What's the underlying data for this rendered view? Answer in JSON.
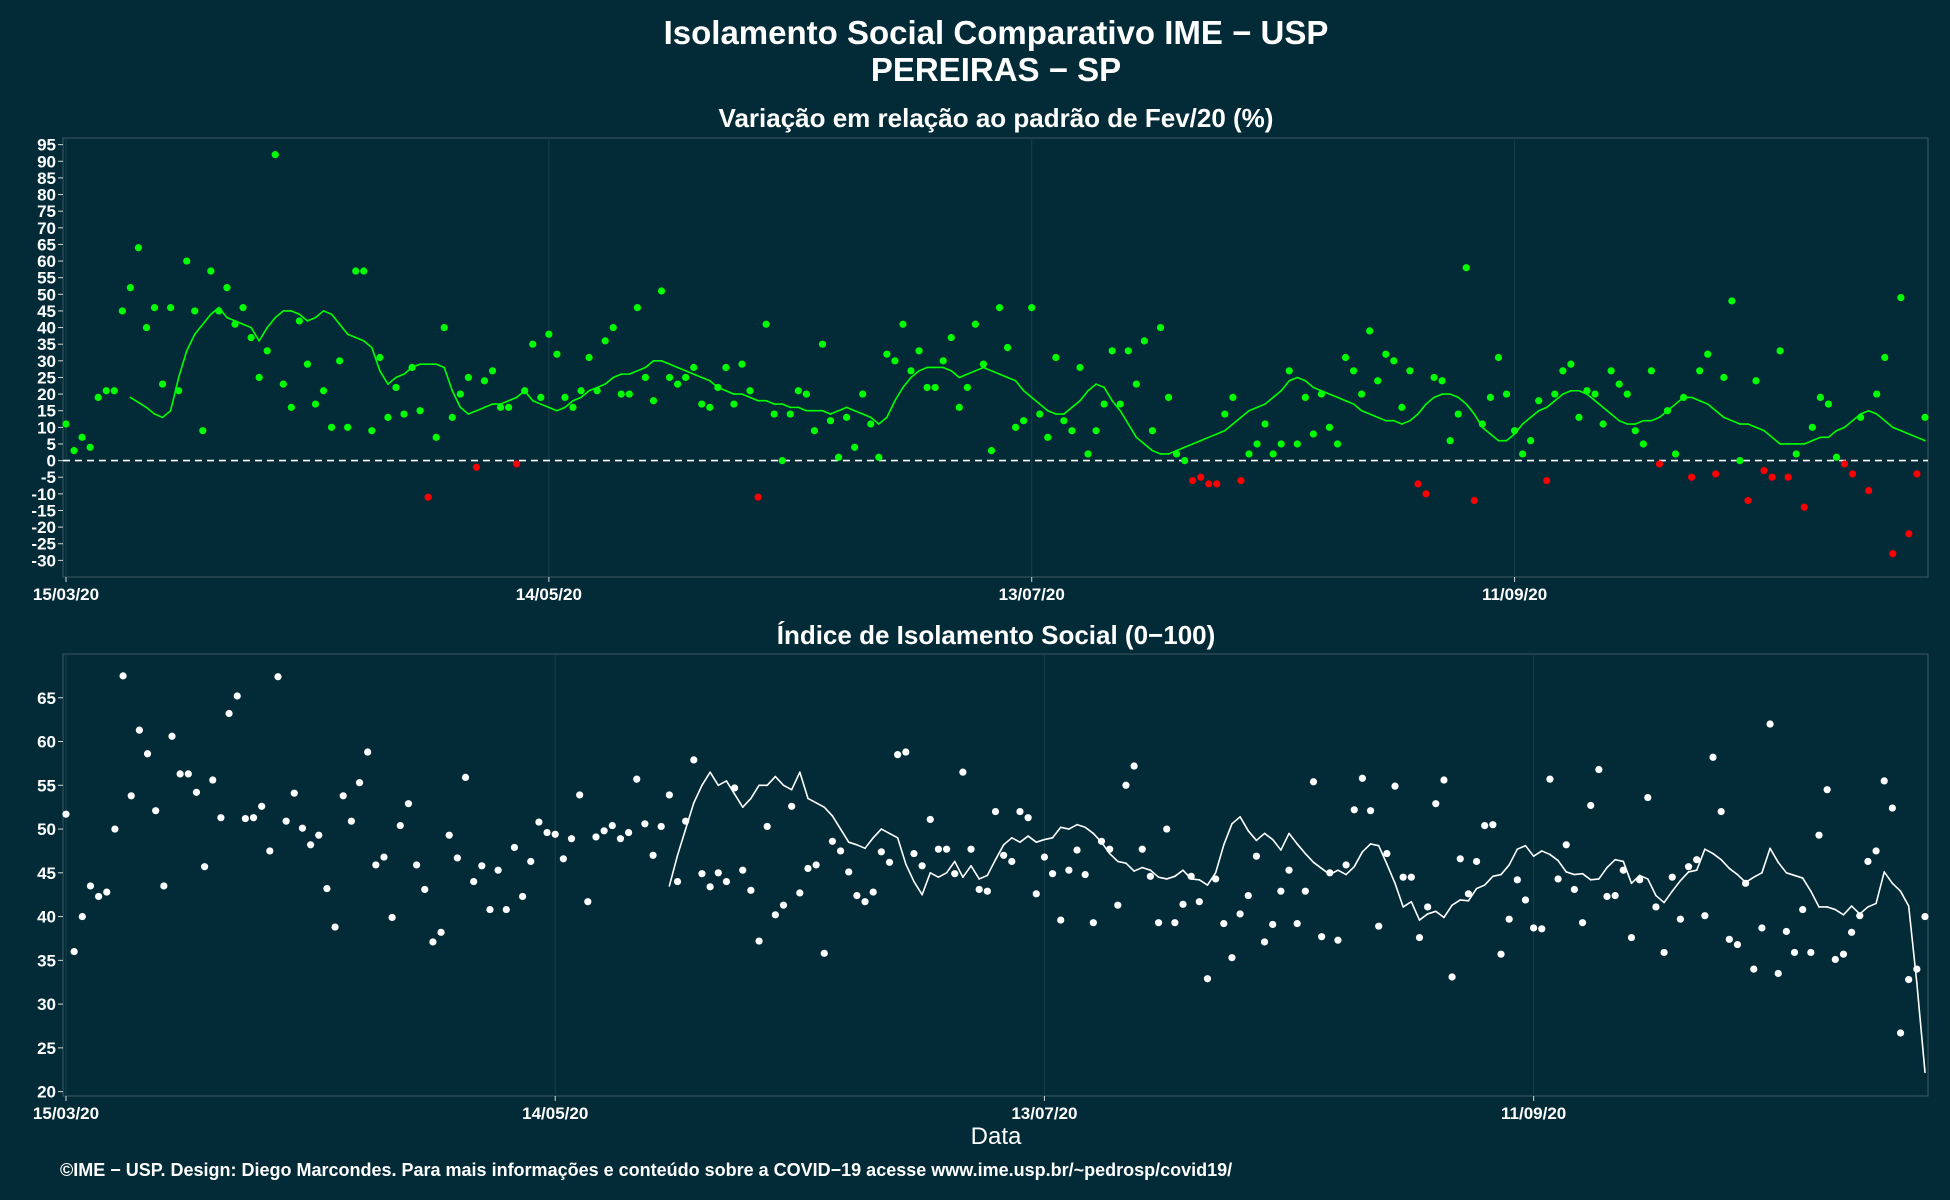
{
  "title_line1": "Isolamento Social Comparativo IME − USP",
  "title_line2": "PEREIRAS − SP",
  "xlabel": "Data",
  "credit": "©IME − USP. Design: Diego Marcondes. Para mais informações e conteúdo sobre a COVID−19 acesse www.ime.usp.br/~pedrosp/covid19/",
  "colors": {
    "background": "#022b37",
    "positive": "#00ff00",
    "negative": "#ff0000",
    "index": "#ffffff"
  },
  "chart_data": [
    {
      "type": "scatter",
      "title": "Variação em relação ao padrão de Fev/20 (%)",
      "x_start": "15/03/20",
      "x_step_days": 1,
      "xtick_labels": [
        "15/03/20",
        "14/05/20",
        "13/07/20",
        "11/09/20"
      ],
      "xtick_days": [
        0,
        60,
        120,
        180
      ],
      "ylim": [
        -35,
        97
      ],
      "yticks": [
        -30,
        -25,
        -20,
        -15,
        -10,
        -5,
        0,
        5,
        10,
        15,
        20,
        25,
        30,
        35,
        40,
        45,
        50,
        55,
        60,
        65,
        70,
        75,
        80,
        85,
        90,
        95
      ],
      "reference_line": 0,
      "values": [
        11,
        3,
        7,
        4,
        19,
        21,
        21,
        45,
        52,
        64,
        40,
        46,
        23,
        46,
        21,
        60,
        45,
        9,
        57,
        45,
        52,
        41,
        46,
        37,
        25,
        33,
        92,
        23,
        16,
        42,
        29,
        17,
        21,
        10,
        30,
        10,
        57,
        57,
        9,
        31,
        13,
        22,
        14,
        28,
        15,
        -11,
        7,
        40,
        13,
        20,
        25,
        -2,
        24,
        27,
        16,
        16,
        -1,
        21,
        35,
        19,
        38,
        32,
        19,
        16,
        21,
        31,
        21,
        36,
        40,
        20,
        20,
        46,
        25,
        18,
        51,
        25,
        23,
        25,
        28,
        17,
        16,
        22,
        28,
        17,
        29,
        21,
        -11,
        41,
        14,
        0,
        14,
        21,
        20,
        9,
        35,
        12,
        1,
        13,
        4,
        20,
        11,
        1,
        32,
        30,
        41,
        27,
        33,
        22,
        22,
        30,
        37,
        16,
        22,
        41,
        29,
        3,
        46,
        34,
        10,
        12,
        46,
        14,
        7,
        31,
        12,
        9,
        28,
        2,
        9,
        17,
        33,
        17,
        33,
        23,
        36,
        9,
        40,
        19,
        2,
        0,
        -6,
        -5,
        -7,
        -7,
        14,
        19,
        -6,
        2,
        5,
        11,
        2,
        5,
        27,
        5,
        19,
        8,
        20,
        10,
        5,
        31,
        27,
        20,
        39,
        24,
        32,
        30,
        16,
        27,
        -7,
        -10,
        25,
        24,
        6,
        14,
        58,
        -12,
        11,
        19,
        31,
        20,
        9,
        2,
        6,
        18,
        -6,
        20,
        27,
        29,
        13,
        21,
        20,
        11,
        27,
        23,
        20,
        9,
        5,
        27,
        -1,
        15,
        2,
        19,
        -5,
        27,
        32,
        -4,
        25,
        48,
        0,
        -12,
        24,
        -3,
        -5,
        33,
        -5,
        2,
        -14,
        10,
        19,
        17,
        1,
        -1,
        -4,
        13,
        -9,
        20,
        31,
        -28,
        49,
        -22,
        -4,
        13
      ],
      "moving_average": [
        19,
        17.5,
        16,
        14,
        13,
        15,
        25,
        33,
        38,
        41,
        44,
        46,
        43,
        42,
        41,
        40,
        36,
        40,
        43,
        45,
        45,
        44,
        42,
        43,
        45,
        44,
        41,
        38,
        37,
        36,
        34,
        27,
        23,
        25,
        26,
        28,
        29,
        29,
        29,
        28,
        21,
        16,
        14,
        15,
        16,
        17,
        17,
        18,
        19,
        21,
        18,
        17,
        16,
        15,
        16,
        18,
        19,
        21,
        22,
        23,
        25,
        26,
        26,
        27,
        28,
        30,
        30,
        29,
        28,
        27,
        26,
        25,
        24,
        22,
        21,
        20,
        20,
        19,
        18,
        18,
        17,
        17,
        16,
        16,
        15,
        15,
        15,
        14,
        15,
        16,
        15,
        14,
        13,
        11,
        13,
        18,
        22,
        25,
        27,
        28,
        28,
        28,
        27,
        25,
        26,
        27,
        28,
        27,
        26,
        25,
        24,
        21,
        19,
        17,
        15,
        14,
        14,
        16,
        18,
        21,
        23,
        22,
        18,
        15,
        11,
        7,
        5,
        3,
        2,
        2,
        3,
        4,
        5,
        6,
        7,
        8,
        9,
        11,
        13,
        15,
        16,
        17,
        19,
        21,
        24,
        25,
        24,
        22,
        21,
        20,
        19,
        18,
        17,
        15,
        14,
        13,
        12,
        12,
        11,
        12,
        14,
        17,
        19,
        20,
        20,
        19,
        17,
        14,
        10,
        8,
        6,
        6,
        8,
        11,
        13,
        15,
        16,
        18,
        20,
        21,
        21,
        20,
        18,
        16,
        14,
        12,
        11,
        11,
        12,
        12,
        13,
        15,
        17,
        19,
        19,
        18,
        17,
        15,
        13,
        12,
        11,
        11,
        10,
        9,
        7,
        5,
        5,
        5,
        5,
        6,
        7,
        7,
        9,
        10,
        12,
        14,
        15,
        14,
        12,
        10,
        9,
        8,
        7,
        6
      ]
    },
    {
      "type": "scatter",
      "title": "Índice de Isolamento Social (0−100)",
      "x_start": "15/03/20",
      "x_step_days": 1,
      "xtick_labels": [
        "15/03/20",
        "14/05/20",
        "13/07/20",
        "11/09/20"
      ],
      "xtick_days": [
        0,
        60,
        120,
        180
      ],
      "ylim": [
        19.5,
        70
      ],
      "yticks": [
        20,
        25,
        30,
        35,
        40,
        45,
        50,
        55,
        60,
        65
      ],
      "values": [
        51.7,
        36,
        40,
        43.5,
        42.3,
        42.8,
        50,
        67.5,
        53.8,
        61.3,
        58.6,
        52.1,
        43.5,
        60.6,
        56.3,
        56.3,
        54.2,
        45.7,
        55.6,
        51.3,
        63.2,
        65.2,
        51.2,
        51.3,
        52.6,
        47.5,
        67.4,
        50.9,
        54.1,
        50.1,
        48.2,
        49.3,
        43.2,
        38.8,
        53.8,
        50.9,
        55.3,
        58.8,
        45.9,
        46.8,
        39.9,
        50.4,
        52.9,
        45.9,
        43.1,
        37.1,
        38.2,
        49.3,
        46.7,
        55.9,
        44,
        45.8,
        40.8,
        45.3,
        40.8,
        47.9,
        42.3,
        46.3,
        50.8,
        49.6,
        49.4,
        46.6,
        48.9,
        53.9,
        41.7,
        49.1,
        49.8,
        50.4,
        48.9,
        49.6,
        55.7,
        50.6,
        47,
        50.3,
        53.9,
        44,
        50.9,
        57.9,
        44.9,
        43.4,
        45,
        44,
        54.7,
        45.3,
        43,
        37.2,
        50.3,
        40.2,
        41.3,
        52.6,
        42.7,
        45.5,
        45.9,
        35.8,
        48.6,
        47.5,
        45.1,
        42.4,
        41.7,
        42.8,
        47.4,
        46.2,
        58.5,
        58.8,
        47.2,
        45.8,
        51.1,
        47.7,
        47.7,
        44.9,
        56.5,
        47.7,
        43.1,
        42.9,
        52,
        47,
        46.3,
        52,
        51.3,
        42.6,
        46.8,
        44.9,
        39.6,
        45.3,
        47.6,
        44.8,
        39.3,
        48.6,
        47.7,
        41.3,
        55,
        57.2,
        47.7,
        44.6,
        39.3,
        50,
        39.3,
        41.4,
        44.6,
        41.7,
        32.9,
        44.3,
        39.2,
        35.3,
        40.3,
        42.4,
        46.9,
        37.1,
        39.1,
        42.9,
        45.3,
        39.2,
        42.9,
        55.4,
        37.7,
        45,
        37.3,
        45.9,
        52.2,
        55.8,
        52.1,
        38.9,
        47.2,
        54.9,
        44.5,
        44.5,
        37.6,
        41.1,
        52.9,
        55.6,
        33.1,
        46.6,
        42.6,
        46.3,
        50.4,
        50.5,
        35.7,
        39.7,
        44.2,
        41.9,
        38.7,
        38.6,
        55.7,
        44.3,
        48.2,
        43.1,
        39.3,
        52.7,
        56.8,
        42.3,
        42.4,
        45.3,
        37.6,
        44.2,
        53.6,
        41.1,
        35.9,
        44.5,
        39.7,
        45.7,
        46.5,
        40.1,
        58.2,
        52,
        37.4,
        36.8,
        43.8,
        34,
        38.7,
        62,
        33.5,
        38.3,
        35.9,
        40.8,
        35.9,
        49.3,
        54.5,
        35.1,
        35.7,
        38.2,
        40.1,
        46.3,
        47.5,
        55.5,
        52.4,
        26.7,
        32.8,
        34,
        40
      ],
      "moving_average": [
        43.5,
        47,
        50,
        53,
        55,
        56.5,
        55,
        55.5,
        54,
        52.5,
        53.5,
        55,
        55,
        56,
        55,
        54.5,
        56.5,
        53.5,
        53,
        52.5,
        51.5,
        50,
        48.5,
        48.2,
        47.8,
        49,
        50,
        49.5,
        49,
        46,
        44,
        42.5,
        45,
        44.5,
        45,
        46.3,
        44.5,
        45.8,
        44.3,
        44.7,
        46.5,
        48.2,
        49,
        48.5,
        49.2,
        48.5,
        48.8,
        49,
        50.2,
        50,
        50.5,
        50.2,
        49.5,
        48.5,
        47.2,
        46.3,
        46.1,
        45.2,
        45.6,
        45.3,
        44.5,
        44.3,
        44.6,
        45.3,
        44.3,
        44.2,
        43.6,
        45,
        48.2,
        50.6,
        51.4,
        49.8,
        48.7,
        49.5,
        48.8,
        47.6,
        49.5,
        48.3,
        47.2,
        46.2,
        45.5,
        44.8,
        45.3,
        44.8,
        45.7,
        47.4,
        48.3,
        48.1,
        46,
        43.8,
        41.1,
        41.7,
        39.6,
        40.3,
        40.6,
        39.9,
        41.3,
        41.9,
        41.8,
        43.2,
        43.6,
        44.6,
        44.8,
        45.9,
        47.7,
        48.1,
        46.9,
        47.5,
        47.1,
        46.4,
        45.1,
        44.8,
        44.9,
        44.2,
        44.3,
        45.6,
        46.5,
        46.3,
        43.8,
        44.7,
        44.3,
        42.4,
        41.6,
        42.9,
        44.1,
        45.1,
        45.3,
        47.7,
        47.2,
        46.5,
        45.5,
        44.8,
        43.9,
        44.5,
        45,
        47.8,
        46.2,
        45,
        44.7,
        44.4,
        42.9,
        41.1,
        41.1,
        40.8,
        40.2,
        41.2,
        40.3,
        41.1,
        41.5,
        45.1,
        43.8,
        42.9,
        41.2,
        32.4,
        22.2
      ]
    }
  ]
}
